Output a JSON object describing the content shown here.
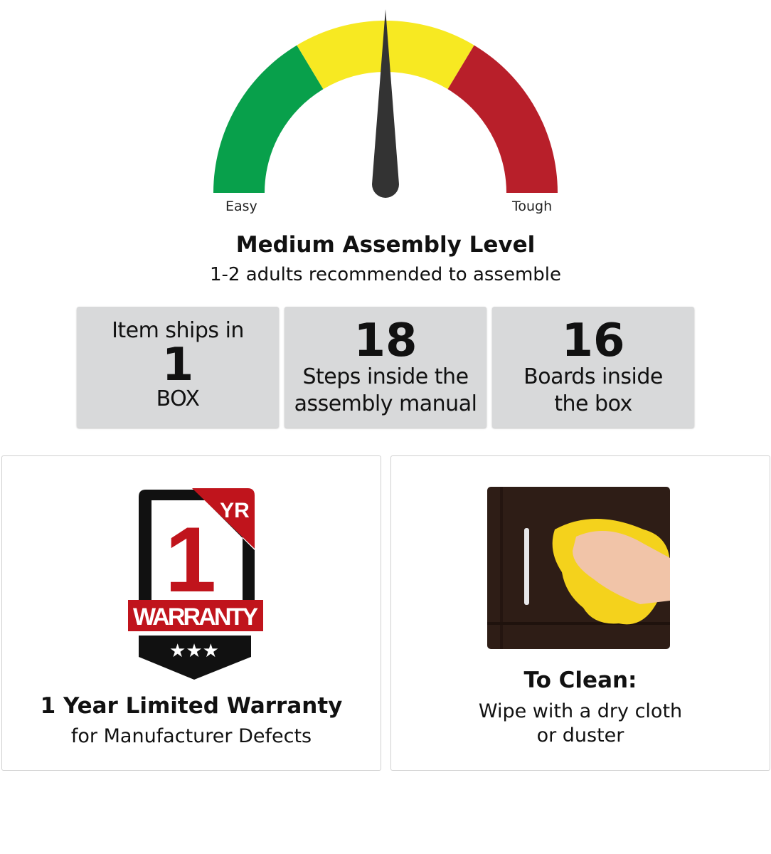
{
  "gauge": {
    "min_label": "Easy",
    "max_label": "Tough",
    "level": 0.5,
    "colors": {
      "easy": "#08a04b",
      "medium": "#f7e922",
      "tough": "#b81f2a",
      "needle": "#333333"
    }
  },
  "assembly": {
    "title": "Medium Assembly Level",
    "subtitle": "1-2 adults recommended to assemble"
  },
  "stats": [
    {
      "pre": "Item ships in",
      "value": "1",
      "line1": "BOX",
      "line2": ""
    },
    {
      "pre": "",
      "value": "18",
      "line1": "Steps inside the",
      "line2": "assembly manual"
    },
    {
      "pre": "",
      "value": "16",
      "line1": "Boards inside",
      "line2": "the box"
    }
  ],
  "warranty": {
    "badge_number": "1",
    "badge_unit": "YR",
    "badge_word": "WARRANTY",
    "title": "1 Year Limited Warranty",
    "subtitle": "for Manufacturer Defects",
    "colors": {
      "red": "#c0141c",
      "black": "#111111"
    }
  },
  "cleaning": {
    "title": "To Clean:",
    "line1": "Wipe with a dry cloth",
    "line2": "or duster"
  }
}
